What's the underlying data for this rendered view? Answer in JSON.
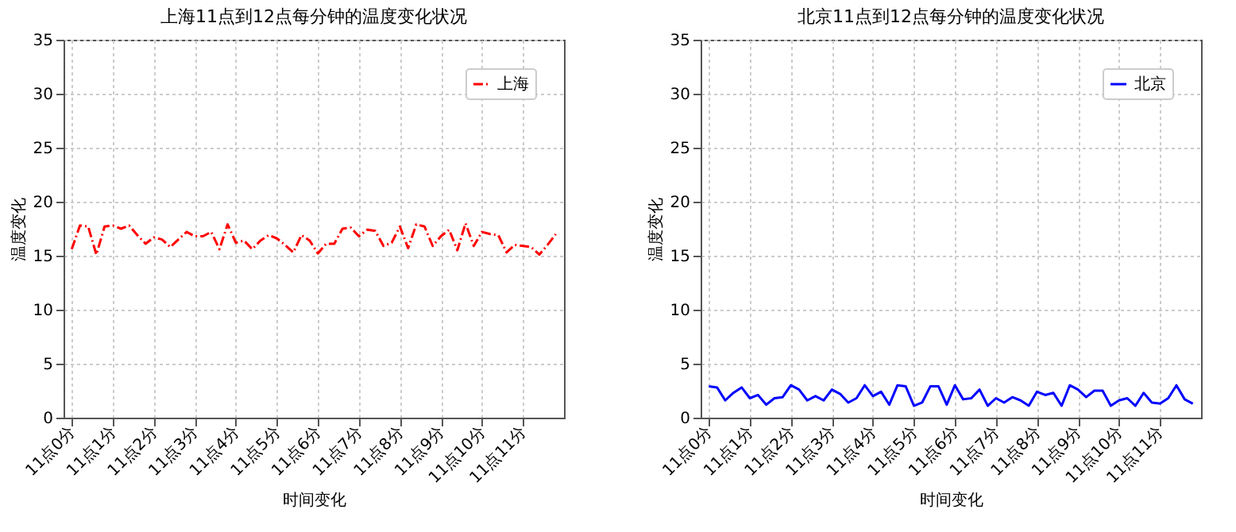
{
  "chart_data": [
    {
      "type": "line",
      "title": "上海11点到12点每分钟的温度变化状况",
      "xlabel": "时间变化",
      "ylabel": "温度变化",
      "categories": [
        "11点0分",
        null,
        null,
        null,
        null,
        "11点1分",
        null,
        null,
        null,
        null,
        "11点2分",
        null,
        null,
        null,
        null,
        "11点3分",
        null,
        null,
        null,
        null,
        "11点4分",
        null,
        null,
        null,
        null,
        "11点5分",
        null,
        null,
        null,
        null,
        "11点6分",
        null,
        null,
        null,
        null,
        "11点7分",
        null,
        null,
        null,
        null,
        "11点8分",
        null,
        null,
        null,
        null,
        "11点9分",
        null,
        null,
        null,
        null,
        "11点10分",
        null,
        null,
        null,
        null,
        "11点11分",
        null,
        null,
        null,
        null
      ],
      "ylim": [
        0,
        35
      ],
      "yticks": [
        0,
        5,
        10,
        15,
        20,
        25,
        30,
        35
      ],
      "grid": true,
      "legend": "top right",
      "line_style": "dashed",
      "series": [
        {
          "name": "上海",
          "color": "#ff0000",
          "values": [
            15.6,
            17.8,
            17.7,
            15.1,
            17.7,
            17.8,
            17.5,
            17.8,
            16.9,
            16.1,
            16.7,
            16.5,
            15.8,
            16.5,
            17.2,
            16.8,
            16.8,
            17.2,
            15.6,
            17.9,
            16.2,
            16.4,
            15.6,
            16.4,
            16.9,
            16.6,
            16.0,
            15.3,
            16.9,
            16.4,
            15.2,
            16.1,
            16.1,
            17.5,
            17.6,
            16.8,
            17.4,
            17.3,
            15.9,
            16.2,
            17.7,
            15.7,
            17.9,
            17.7,
            15.9,
            16.8,
            17.4,
            15.5,
            18.0,
            15.9,
            17.2,
            17.0,
            16.9,
            15.3,
            16.0,
            15.9,
            15.8,
            15.1,
            16.0,
            17.0
          ]
        }
      ]
    },
    {
      "type": "line",
      "title": "北京11点到12点每分钟的温度变化状况",
      "xlabel": "时间变化",
      "ylabel": "温度变化",
      "categories": [
        "11点0分",
        null,
        null,
        null,
        null,
        "11点1分",
        null,
        null,
        null,
        null,
        "11点2分",
        null,
        null,
        null,
        null,
        "11点3分",
        null,
        null,
        null,
        null,
        "11点4分",
        null,
        null,
        null,
        null,
        "11点5分",
        null,
        null,
        null,
        null,
        "11点6分",
        null,
        null,
        null,
        null,
        "11点7分",
        null,
        null,
        null,
        null,
        "11点8分",
        null,
        null,
        null,
        null,
        "11点9分",
        null,
        null,
        null,
        null,
        "11点10分",
        null,
        null,
        null,
        null,
        "11点11分",
        null,
        null,
        null,
        null
      ],
      "ylim": [
        0,
        35
      ],
      "yticks": [
        0,
        5,
        10,
        15,
        20,
        25,
        30,
        35
      ],
      "grid": true,
      "legend": "top right",
      "line_style": "solid",
      "series": [
        {
          "name": "北京",
          "color": "#0000ff",
          "values": [
            2.9,
            2.8,
            1.6,
            2.3,
            2.8,
            1.8,
            2.1,
            1.2,
            1.8,
            1.9,
            3.0,
            2.6,
            1.6,
            2.0,
            1.6,
            2.6,
            2.2,
            1.4,
            1.8,
            3.0,
            2.0,
            2.4,
            1.2,
            3.0,
            2.9,
            1.1,
            1.4,
            2.9,
            2.9,
            1.2,
            3.0,
            1.7,
            1.8,
            2.6,
            1.1,
            1.8,
            1.4,
            1.9,
            1.6,
            1.1,
            2.4,
            2.1,
            2.3,
            1.1,
            3.0,
            2.6,
            1.9,
            2.5,
            2.5,
            1.1,
            1.6,
            1.8,
            1.1,
            2.3,
            1.4,
            1.3,
            1.8,
            3.0,
            1.7,
            1.3
          ]
        }
      ]
    }
  ]
}
